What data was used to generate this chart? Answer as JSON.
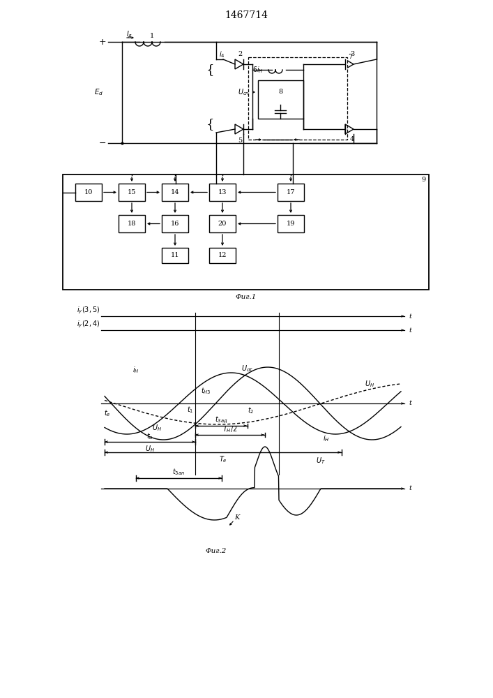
{
  "title": "1467714",
  "bg_color": "#ffffff",
  "fig1_label": "Фиг.1",
  "fig2_label": "Фиг.2"
}
